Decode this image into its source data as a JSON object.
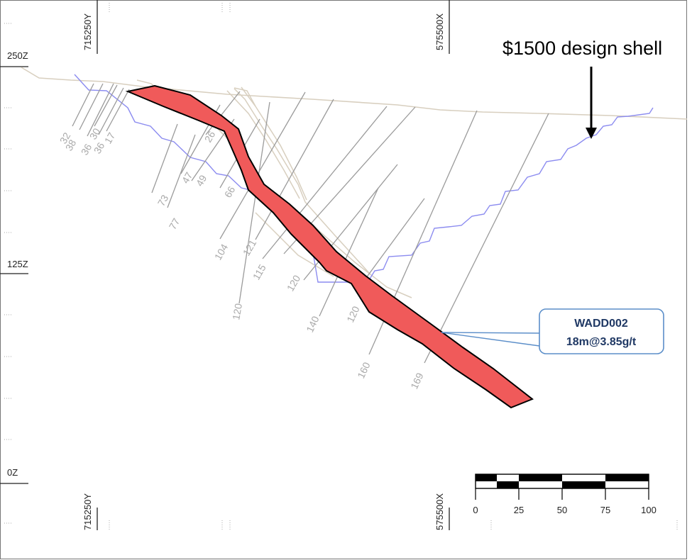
{
  "elevation_labels": [
    "250Z",
    "125Z",
    "0Z"
  ],
  "coordinate_labels": {
    "northing": "715250Y",
    "easting": "575500X"
  },
  "drill_hole_depths": [
    "32",
    "38",
    "36",
    "30",
    "36",
    "17",
    "73",
    "77",
    "47",
    "49",
    "26",
    "66",
    "104",
    "121",
    "115",
    "120",
    "120",
    "140",
    "120",
    "160",
    "169"
  ],
  "annotation_shell": "$1500 design shell",
  "callout": {
    "hole": "WADD002",
    "intercept": "18m@3.85g/t"
  },
  "scale_bar": {
    "ticks": [
      "0",
      "25",
      "50",
      "75",
      "100"
    ]
  },
  "colors": {
    "orebody_fill": "#f05a5a",
    "design_shell": "#8c8cf0",
    "drill_trace": "#9b9b9b",
    "topography": "#d8cfbf",
    "callout_border": "#5b8ec9",
    "callout_text": "#1f3864"
  }
}
